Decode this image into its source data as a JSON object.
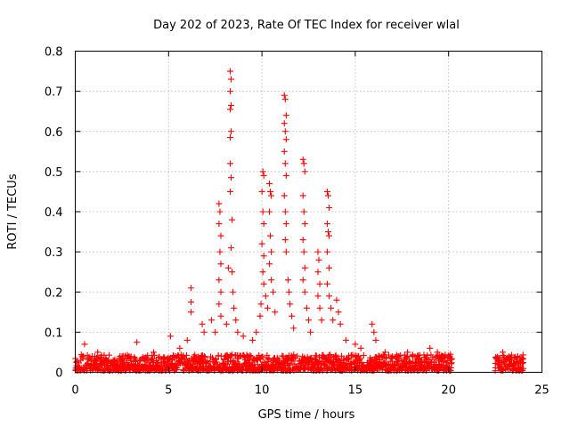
{
  "chart_data": {
    "type": "scatter",
    "title": "Day 202 of 2023, Rate Of TEC Index for receiver wlal",
    "xlabel": "GPS time / hours",
    "ylabel": "ROTI / TECUs",
    "xlim": [
      0,
      25
    ],
    "ylim": [
      0,
      0.8
    ],
    "xticks": [
      "0",
      "5",
      "10",
      "15",
      "20",
      "25"
    ],
    "yticks": [
      "0",
      "0.1",
      "0.2",
      "0.3",
      "0.4",
      "0.5",
      "0.6",
      "0.7",
      "0.8"
    ],
    "grid": true,
    "marker": "+",
    "color": "#ff0000",
    "baseline_segments": [
      {
        "x_start": 0.0,
        "x_end": 20.2,
        "typical_max": 0.04
      },
      {
        "x_start": 22.5,
        "x_end": 24.0,
        "typical_max": 0.04
      }
    ],
    "series": [
      {
        "points": [
          [
            0.5,
            0.07
          ],
          [
            1.2,
            0.05
          ],
          [
            2.4,
            0.04
          ],
          [
            3.3,
            0.075
          ],
          [
            4.2,
            0.05
          ],
          [
            5.1,
            0.09
          ],
          [
            5.6,
            0.06
          ],
          [
            6.0,
            0.08
          ],
          [
            6.2,
            0.21
          ],
          [
            6.2,
            0.175
          ],
          [
            6.2,
            0.15
          ],
          [
            6.8,
            0.12
          ],
          [
            6.9,
            0.1
          ],
          [
            7.3,
            0.13
          ],
          [
            7.5,
            0.1
          ],
          [
            7.7,
            0.42
          ],
          [
            7.75,
            0.4
          ],
          [
            7.7,
            0.37
          ],
          [
            7.8,
            0.34
          ],
          [
            7.75,
            0.3
          ],
          [
            7.8,
            0.27
          ],
          [
            7.7,
            0.23
          ],
          [
            7.8,
            0.2
          ],
          [
            7.7,
            0.17
          ],
          [
            7.8,
            0.14
          ],
          [
            8.1,
            0.12
          ],
          [
            8.2,
            0.26
          ],
          [
            8.3,
            0.75
          ],
          [
            8.35,
            0.73
          ],
          [
            8.3,
            0.7
          ],
          [
            8.35,
            0.665
          ],
          [
            8.3,
            0.655
          ],
          [
            8.35,
            0.6
          ],
          [
            8.3,
            0.585
          ],
          [
            8.3,
            0.52
          ],
          [
            8.35,
            0.485
          ],
          [
            8.3,
            0.45
          ],
          [
            8.4,
            0.38
          ],
          [
            8.35,
            0.31
          ],
          [
            8.4,
            0.25
          ],
          [
            8.45,
            0.2
          ],
          [
            8.5,
            0.16
          ],
          [
            8.6,
            0.13
          ],
          [
            8.7,
            0.1
          ],
          [
            9.0,
            0.09
          ],
          [
            9.5,
            0.08
          ],
          [
            9.7,
            0.1
          ],
          [
            9.9,
            0.14
          ],
          [
            9.95,
            0.17
          ],
          [
            10.05,
            0.5
          ],
          [
            10.1,
            0.49
          ],
          [
            10.0,
            0.45
          ],
          [
            10.05,
            0.4
          ],
          [
            10.1,
            0.37
          ],
          [
            10.0,
            0.32
          ],
          [
            10.1,
            0.29
          ],
          [
            10.05,
            0.25
          ],
          [
            10.1,
            0.22
          ],
          [
            10.2,
            0.19
          ],
          [
            10.3,
            0.16
          ],
          [
            10.4,
            0.47
          ],
          [
            10.45,
            0.45
          ],
          [
            10.5,
            0.44
          ],
          [
            10.4,
            0.4
          ],
          [
            10.45,
            0.34
          ],
          [
            10.5,
            0.3
          ],
          [
            10.4,
            0.27
          ],
          [
            10.5,
            0.23
          ],
          [
            10.6,
            0.2
          ],
          [
            10.7,
            0.15
          ],
          [
            11.2,
            0.69
          ],
          [
            11.25,
            0.68
          ],
          [
            11.3,
            0.64
          ],
          [
            11.2,
            0.62
          ],
          [
            11.25,
            0.6
          ],
          [
            11.3,
            0.58
          ],
          [
            11.2,
            0.55
          ],
          [
            11.25,
            0.52
          ],
          [
            11.3,
            0.49
          ],
          [
            11.2,
            0.44
          ],
          [
            11.25,
            0.4
          ],
          [
            11.3,
            0.37
          ],
          [
            11.25,
            0.33
          ],
          [
            11.3,
            0.3
          ],
          [
            11.4,
            0.23
          ],
          [
            11.45,
            0.2
          ],
          [
            11.5,
            0.17
          ],
          [
            11.6,
            0.14
          ],
          [
            11.7,
            0.11
          ],
          [
            12.2,
            0.53
          ],
          [
            12.25,
            0.52
          ],
          [
            12.3,
            0.5
          ],
          [
            12.2,
            0.44
          ],
          [
            12.25,
            0.4
          ],
          [
            12.3,
            0.37
          ],
          [
            12.2,
            0.33
          ],
          [
            12.25,
            0.3
          ],
          [
            12.3,
            0.26
          ],
          [
            12.2,
            0.23
          ],
          [
            12.3,
            0.2
          ],
          [
            12.4,
            0.16
          ],
          [
            12.5,
            0.13
          ],
          [
            12.6,
            0.1
          ],
          [
            13.0,
            0.3
          ],
          [
            13.05,
            0.28
          ],
          [
            13.0,
            0.25
          ],
          [
            13.1,
            0.22
          ],
          [
            13.0,
            0.19
          ],
          [
            13.1,
            0.16
          ],
          [
            13.2,
            0.13
          ],
          [
            13.5,
            0.45
          ],
          [
            13.55,
            0.44
          ],
          [
            13.6,
            0.41
          ],
          [
            13.5,
            0.37
          ],
          [
            13.55,
            0.35
          ],
          [
            13.6,
            0.34
          ],
          [
            13.5,
            0.3
          ],
          [
            13.6,
            0.26
          ],
          [
            13.5,
            0.22
          ],
          [
            13.6,
            0.19
          ],
          [
            13.7,
            0.16
          ],
          [
            13.8,
            0.13
          ],
          [
            14.0,
            0.18
          ],
          [
            14.1,
            0.15
          ],
          [
            14.2,
            0.12
          ],
          [
            14.5,
            0.08
          ],
          [
            15.0,
            0.07
          ],
          [
            15.3,
            0.06
          ],
          [
            15.9,
            0.12
          ],
          [
            16.0,
            0.1
          ],
          [
            16.1,
            0.08
          ],
          [
            16.6,
            0.05
          ],
          [
            17.3,
            0.04
          ],
          [
            17.8,
            0.05
          ],
          [
            18.4,
            0.035
          ],
          [
            19.0,
            0.06
          ],
          [
            19.4,
            0.05
          ],
          [
            19.7,
            0.04
          ],
          [
            20.1,
            0.045
          ],
          [
            22.9,
            0.05
          ],
          [
            23.3,
            0.035
          ],
          [
            23.7,
            0.04
          ]
        ]
      }
    ]
  }
}
